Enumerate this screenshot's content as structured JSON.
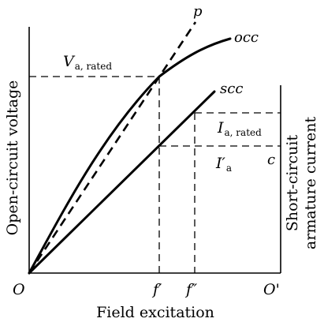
{
  "axes": {
    "x_label": "Field excitation",
    "y_left_label": "Open-circuit voltage",
    "y_right_label_line1": "Short-circuit",
    "y_right_label_line2": "armature current",
    "origin_label": "O",
    "origin_right_label": "O'"
  },
  "ticks": {
    "f_prime": "f′",
    "f_double_prime": "f″"
  },
  "curves": {
    "occ_label": "occ",
    "scc_label": "scc",
    "p_label": "p",
    "c_label": "c"
  },
  "annotations": {
    "v_rated_main": "V",
    "v_rated_sub": "a, rated",
    "i_rated_main": "I",
    "i_rated_sub": "a, rated",
    "i_prime_main": "I′",
    "i_prime_sub": "a"
  }
}
